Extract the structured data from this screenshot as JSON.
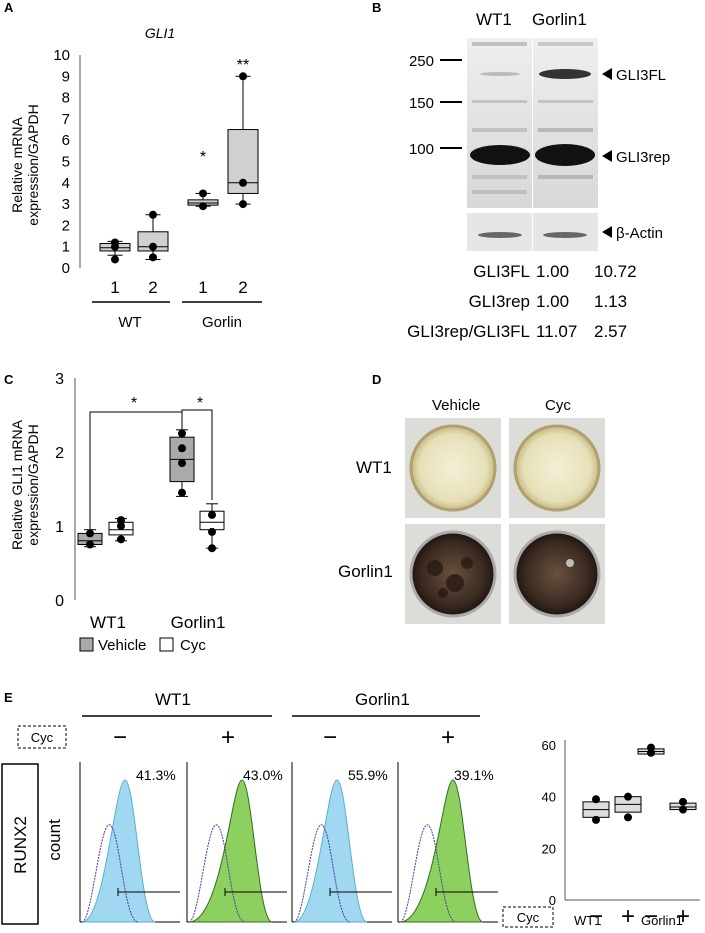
{
  "panels": {
    "A": "A",
    "B": "B",
    "C": "C",
    "D": "D",
    "E": "E"
  },
  "panel_a": {
    "title": "GLI1",
    "ylabel_line1": "Relative mRNA",
    "ylabel_line2": "expression/GAPDH",
    "yticks": [
      "0",
      "1",
      "2",
      "3",
      "4",
      "5",
      "6",
      "7",
      "8",
      "9",
      "10"
    ],
    "xticks": [
      "1",
      "2",
      "1",
      "2"
    ],
    "groups": [
      "WT",
      "Gorlin"
    ],
    "sig": [
      "*",
      "**"
    ]
  },
  "panel_b": {
    "lanes": [
      "WT1",
      "Gorlin1"
    ],
    "mw_markers": [
      "250",
      "150",
      "100"
    ],
    "bands": [
      "GLI3FL",
      "GLI3rep",
      "β-Actin"
    ],
    "quant": [
      {
        "label": "GLI3FL",
        "wt": "1.00",
        "gorlin": "10.72"
      },
      {
        "label": "GLI3rep",
        "wt": "1.00",
        "gorlin": "1.13"
      },
      {
        "label": "GLI3rep/GLI3FL",
        "wt": "11.07",
        "gorlin": "2.57"
      }
    ]
  },
  "panel_c": {
    "ylabel_line1": "Relative GLI1 mRNA",
    "ylabel_line2": "expression/GAPDH",
    "yticks": [
      "0",
      "1",
      "2",
      "3"
    ],
    "groups": [
      "WT1",
      "Gorlin1"
    ],
    "sig": [
      "*",
      "*"
    ],
    "legend": [
      "Vehicle",
      "Cyc"
    ]
  },
  "panel_d": {
    "cols": [
      "Vehicle",
      "Cyc"
    ],
    "rows": [
      "WT1",
      "Gorlin1"
    ]
  },
  "panel_e": {
    "groups": [
      "WT1",
      "Gorlin1"
    ],
    "cyc_label": "Cyc",
    "signs": [
      "−",
      "+",
      "−",
      "+"
    ],
    "ylabel_box": "RUNX2",
    "ylabel_count": "count",
    "percents": [
      "41.3%",
      "43.0%",
      "55.9%",
      "39.1%"
    ],
    "summary_yticks": [
      "0",
      "20",
      "40",
      "60"
    ],
    "summary_groups": [
      "WT1",
      "Gorlin1"
    ]
  },
  "colors": {
    "box_gray": "#d0d0d0",
    "flow_blue": "#9fd8f0",
    "flow_green": "#8ed060",
    "dark_green": "#2e6e1e"
  },
  "chart_data": [
    {
      "type": "box",
      "title": "GLI1",
      "ylabel": "Relative mRNA expression/GAPDH",
      "ylim": [
        0,
        10
      ],
      "categories": [
        "WT 1",
        "WT 2",
        "Gorlin 1",
        "Gorlin 2"
      ],
      "boxes": [
        {
          "q1": 0.8,
          "median": 0.95,
          "q3": 1.15,
          "min": 0.6,
          "max": 1.25,
          "points": [
            0.4,
            1.0,
            1.2
          ]
        },
        {
          "q1": 0.8,
          "median": 1.0,
          "q3": 1.7,
          "min": 0.4,
          "max": 2.5,
          "points": [
            0.5,
            1.0,
            2.5
          ]
        },
        {
          "q1": 2.95,
          "median": 3.05,
          "q3": 3.2,
          "min": 2.9,
          "max": 3.5,
          "points": [
            2.9,
            3.5
          ]
        },
        {
          "q1": 3.5,
          "median": 4.0,
          "q3": 6.5,
          "min": 3.0,
          "max": 9.0,
          "points": [
            3.0,
            4.0,
            9.0
          ]
        }
      ]
    },
    {
      "type": "box",
      "ylabel": "Relative GLI1 mRNA expression/GAPDH",
      "ylim": [
        0,
        3
      ],
      "categories": [
        "WT1 Vehicle",
        "WT1 Cyc",
        "Gorlin1 Vehicle",
        "Gorlin1 Cyc"
      ],
      "series": [
        {
          "name": "Vehicle"
        },
        {
          "name": "Cyc"
        }
      ],
      "boxes": [
        {
          "q1": 0.75,
          "median": 0.8,
          "q3": 0.9,
          "min": 0.72,
          "max": 0.95,
          "points": [
            0.75,
            0.9
          ]
        },
        {
          "q1": 0.88,
          "median": 0.95,
          "q3": 1.05,
          "min": 0.8,
          "max": 1.1,
          "points": [
            0.82,
            1.0,
            1.08
          ]
        },
        {
          "q1": 1.6,
          "median": 1.9,
          "q3": 2.2,
          "min": 1.4,
          "max": 2.3,
          "points": [
            1.45,
            1.85,
            2.05,
            2.25
          ]
        },
        {
          "q1": 0.95,
          "median": 1.05,
          "q3": 1.2,
          "min": 0.7,
          "max": 1.3,
          "points": [
            0.7,
            0.92,
            1.15
          ]
        }
      ]
    },
    {
      "type": "box",
      "ylim": [
        0,
        60
      ],
      "categories": [
        "WT1 −",
        "WT1 +",
        "Gorlin1 −",
        "Gorlin1 +"
      ],
      "boxes": [
        {
          "q1": 32,
          "median": 35,
          "q3": 38,
          "points": [
            31,
            39
          ]
        },
        {
          "q1": 34,
          "median": 37,
          "q3": 40,
          "points": [
            32,
            40
          ]
        },
        {
          "q1": 56.5,
          "median": 57.5,
          "q3": 58.5,
          "points": [
            57,
            59
          ]
        },
        {
          "q1": 35,
          "median": 36,
          "q3": 37.5,
          "points": [
            35,
            38
          ]
        }
      ]
    }
  ]
}
